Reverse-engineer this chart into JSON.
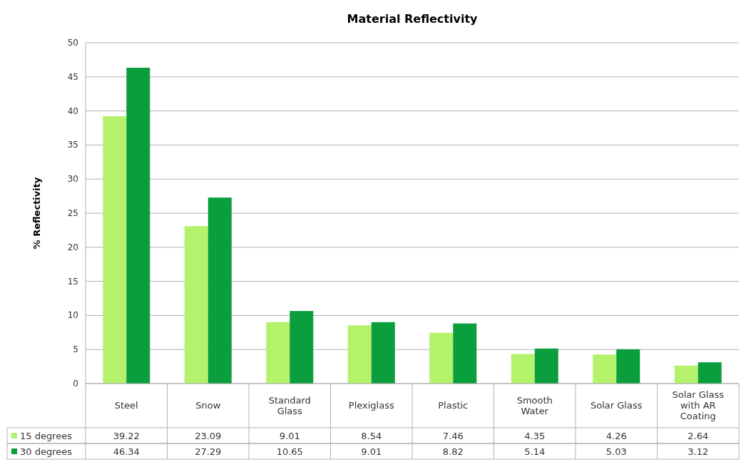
{
  "chart_data": {
    "type": "bar",
    "title": "Material Reflectivity",
    "ylabel": "% Reflectivity",
    "categories": [
      "Steel",
      "Snow",
      "Standard Glass",
      "Plexiglass",
      "Plastic",
      "Smooth Water",
      "Solar Glass",
      "Solar Glass with AR Coating"
    ],
    "series": [
      {
        "name": "15 degrees",
        "color": "#b4f26c",
        "values": [
          39.22,
          23.09,
          9.01,
          8.54,
          7.46,
          4.35,
          4.26,
          2.64
        ]
      },
      {
        "name": "30 degrees",
        "color": "#0a9e3c",
        "values": [
          46.34,
          27.29,
          10.65,
          9.01,
          8.82,
          5.14,
          5.03,
          3.12
        ]
      }
    ],
    "ylim": [
      0,
      50
    ],
    "yticks": [
      0,
      5,
      10,
      15,
      20,
      25,
      30,
      35,
      40,
      45,
      50
    ],
    "grid": "y",
    "data_labels": true,
    "legend": "bottom"
  }
}
